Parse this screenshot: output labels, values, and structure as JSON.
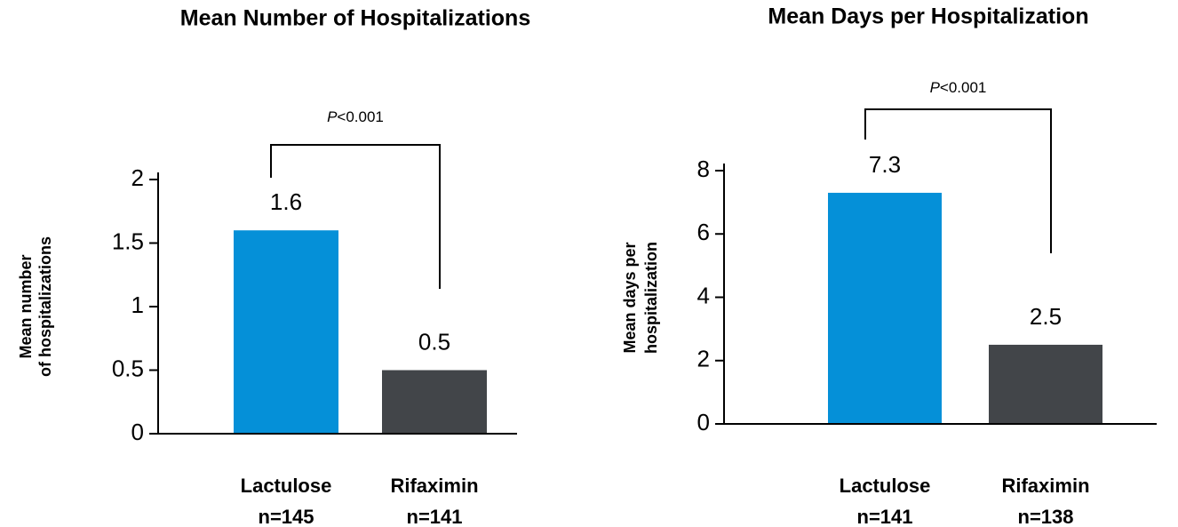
{
  "chart_data": [
    {
      "type": "bar",
      "title": "Mean Number of Hospitalizations",
      "ylabel": [
        "Mean number",
        "of hospitalizations"
      ],
      "categories": [
        "Lactulose",
        "Rifaximin"
      ],
      "sample_sizes": [
        "n=145",
        "n=141"
      ],
      "values": [
        1.6,
        0.5
      ],
      "colors": [
        "#0590d8",
        "#424549"
      ],
      "ylim": [
        0,
        2
      ],
      "yticks": [
        0,
        0.5,
        1,
        1.5,
        2
      ],
      "annotation": "P<0.001"
    },
    {
      "type": "bar",
      "title": "Mean Days per Hospitalization",
      "ylabel": [
        "Mean days per",
        "hospitalization"
      ],
      "categories": [
        "Lactulose",
        "Rifaximin"
      ],
      "sample_sizes": [
        "n=141",
        "n=138"
      ],
      "values": [
        7.3,
        2.5
      ],
      "colors": [
        "#0590d8",
        "#424549"
      ],
      "ylim": [
        0,
        8
      ],
      "yticks": [
        0,
        2,
        4,
        6,
        8
      ],
      "annotation": "P<0.001"
    }
  ]
}
